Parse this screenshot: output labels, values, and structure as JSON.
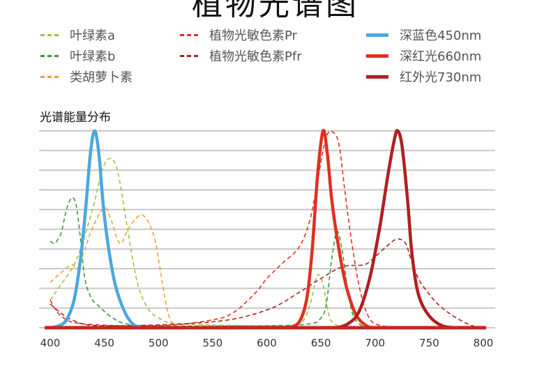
{
  "title": "植物光谱图",
  "chart_data": {
    "type": "line",
    "title": "植物光谱图",
    "subtitle": "光谱能量分布",
    "xlabel": "",
    "ylabel": "",
    "xlim": [
      400,
      800
    ],
    "ylim": [
      0,
      100
    ],
    "xticks": [
      400,
      450,
      500,
      550,
      600,
      650,
      700,
      750,
      800
    ],
    "grid": "horizontal",
    "legend_placement": "top",
    "series": [
      {
        "name": "叶绿素a",
        "style": "dashed",
        "color": "#9cc43a",
        "points": [
          [
            400,
            14
          ],
          [
            410,
            22
          ],
          [
            420,
            30
          ],
          [
            428,
            40
          ],
          [
            440,
            62
          ],
          [
            448,
            80
          ],
          [
            455,
            86
          ],
          [
            462,
            80
          ],
          [
            470,
            55
          ],
          [
            476,
            35
          ],
          [
            482,
            20
          ],
          [
            490,
            10
          ],
          [
            500,
            5
          ],
          [
            520,
            2
          ],
          [
            600,
            1
          ],
          [
            630,
            2
          ],
          [
            640,
            12
          ],
          [
            645,
            24
          ],
          [
            648,
            27
          ],
          [
            652,
            22
          ],
          [
            656,
            10
          ],
          [
            660,
            3
          ],
          [
            670,
            0
          ]
        ]
      },
      {
        "name": "叶绿素b",
        "style": "dashed",
        "color": "#3a9a3a",
        "points": [
          [
            400,
            44
          ],
          [
            404,
            43
          ],
          [
            410,
            48
          ],
          [
            415,
            60
          ],
          [
            420,
            66
          ],
          [
            424,
            62
          ],
          [
            428,
            45
          ],
          [
            432,
            25
          ],
          [
            438,
            15
          ],
          [
            445,
            11
          ],
          [
            455,
            6
          ],
          [
            470,
            2
          ],
          [
            500,
            1
          ],
          [
            600,
            1
          ],
          [
            640,
            2
          ],
          [
            650,
            5
          ],
          [
            655,
            12
          ],
          [
            660,
            35
          ],
          [
            665,
            49
          ],
          [
            670,
            38
          ],
          [
            675,
            18
          ],
          [
            680,
            6
          ],
          [
            688,
            1
          ],
          [
            700,
            0
          ]
        ]
      },
      {
        "name": "类胡萝卜素",
        "style": "dashed",
        "color": "#f0a030",
        "points": [
          [
            400,
            23
          ],
          [
            410,
            28
          ],
          [
            420,
            32
          ],
          [
            425,
            30
          ],
          [
            432,
            40
          ],
          [
            440,
            52
          ],
          [
            450,
            61
          ],
          [
            456,
            55
          ],
          [
            462,
            45
          ],
          [
            466,
            43
          ],
          [
            472,
            50
          ],
          [
            480,
            56
          ],
          [
            486,
            57
          ],
          [
            492,
            52
          ],
          [
            497,
            44
          ],
          [
            502,
            28
          ],
          [
            507,
            12
          ],
          [
            512,
            3
          ],
          [
            520,
            0
          ]
        ]
      },
      {
        "name": "植物光敏色素Pr",
        "style": "dashed",
        "color": "#e03020",
        "points": [
          [
            400,
            14
          ],
          [
            410,
            6
          ],
          [
            430,
            2
          ],
          [
            500,
            1
          ],
          [
            550,
            4
          ],
          [
            570,
            8
          ],
          [
            590,
            18
          ],
          [
            600,
            25
          ],
          [
            615,
            33
          ],
          [
            630,
            41
          ],
          [
            640,
            55
          ],
          [
            647,
            75
          ],
          [
            655,
            97
          ],
          [
            662,
            99
          ],
          [
            667,
            92
          ],
          [
            672,
            70
          ],
          [
            678,
            45
          ],
          [
            685,
            22
          ],
          [
            692,
            8
          ],
          [
            700,
            2
          ],
          [
            720,
            0
          ]
        ]
      },
      {
        "name": "植物光敏色素Pfr",
        "style": "dashed",
        "color": "#b02020",
        "points": [
          [
            400,
            12
          ],
          [
            420,
            4
          ],
          [
            450,
            1
          ],
          [
            550,
            3
          ],
          [
            600,
            9
          ],
          [
            630,
            18
          ],
          [
            650,
            25
          ],
          [
            670,
            31
          ],
          [
            690,
            32
          ],
          [
            700,
            36
          ],
          [
            710,
            41
          ],
          [
            720,
            45
          ],
          [
            728,
            43
          ],
          [
            733,
            35
          ],
          [
            740,
            25
          ],
          [
            750,
            17
          ],
          [
            760,
            11
          ],
          [
            775,
            5
          ],
          [
            790,
            1
          ],
          [
            800,
            0
          ]
        ]
      },
      {
        "name": "深蓝色450nm",
        "style": "solid",
        "color": "#4aa8de",
        "points": [
          [
            400,
            0
          ],
          [
            408,
            1
          ],
          [
            415,
            4
          ],
          [
            422,
            14
          ],
          [
            428,
            35
          ],
          [
            433,
            62
          ],
          [
            437,
            88
          ],
          [
            441,
            100
          ],
          [
            445,
            88
          ],
          [
            449,
            62
          ],
          [
            454,
            40
          ],
          [
            460,
            22
          ],
          [
            468,
            9
          ],
          [
            476,
            2
          ],
          [
            485,
            0
          ]
        ]
      },
      {
        "name": "深红光660nm",
        "style": "solid",
        "color": "#e03020",
        "points": [
          [
            620,
            0
          ],
          [
            630,
            3
          ],
          [
            637,
            15
          ],
          [
            642,
            40
          ],
          [
            647,
            78
          ],
          [
            652,
            100
          ],
          [
            656,
            88
          ],
          [
            660,
            65
          ],
          [
            666,
            42
          ],
          [
            673,
            22
          ],
          [
            682,
            7
          ],
          [
            692,
            1
          ],
          [
            700,
            0
          ]
        ]
      },
      {
        "name": "红外光730nm",
        "style": "solid",
        "color": "#b02020",
        "points": [
          [
            665,
            0
          ],
          [
            675,
            2
          ],
          [
            685,
            8
          ],
          [
            695,
            25
          ],
          [
            704,
            50
          ],
          [
            712,
            78
          ],
          [
            718,
            96
          ],
          [
            721,
            100
          ],
          [
            725,
            92
          ],
          [
            730,
            65
          ],
          [
            734,
            38
          ],
          [
            740,
            17
          ],
          [
            750,
            6
          ],
          [
            762,
            1
          ],
          [
            775,
            0
          ]
        ]
      }
    ]
  }
}
